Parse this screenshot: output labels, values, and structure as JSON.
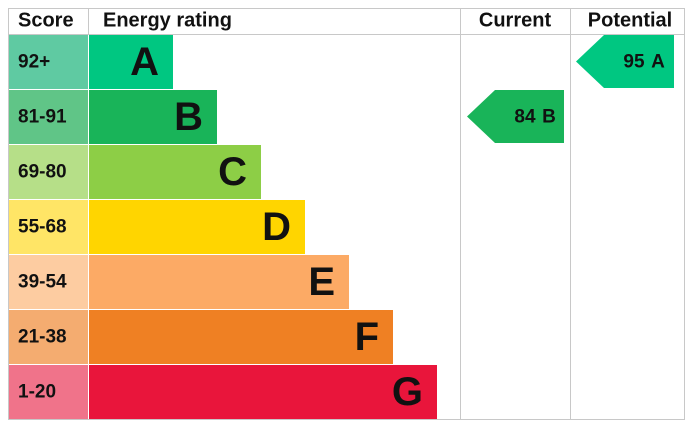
{
  "header": {
    "score": "Score",
    "rating": "Energy rating",
    "current": "Current",
    "potential": "Potential"
  },
  "bands": [
    {
      "score": "92+",
      "letter": "A",
      "color": "#00c781",
      "score_color": "#5fcaa2"
    },
    {
      "score": "81-91",
      "letter": "B",
      "color": "#19b459",
      "score_color": "#60c587"
    },
    {
      "score": "69-80",
      "letter": "C",
      "color": "#8dce46",
      "score_color": "#b6df88"
    },
    {
      "score": "55-68",
      "letter": "D",
      "color": "#ffd500",
      "score_color": "#ffe566"
    },
    {
      "score": "39-54",
      "letter": "E",
      "color": "#fcaa65",
      "score_color": "#fdcca1"
    },
    {
      "score": "21-38",
      "letter": "F",
      "color": "#ef8023",
      "score_color": "#f4ac70"
    },
    {
      "score": "1-20",
      "letter": "G",
      "color": "#e9153b",
      "score_color": "#f0738a"
    }
  ],
  "current": {
    "value": 84,
    "letter": "B"
  },
  "potential": {
    "value": 95,
    "letter": "A"
  }
}
